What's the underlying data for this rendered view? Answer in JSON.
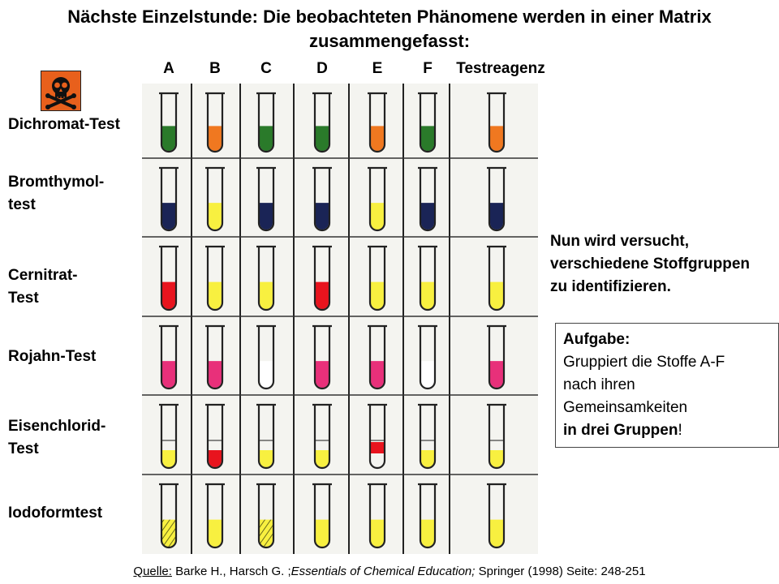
{
  "title": {
    "line1": "Nächste Einzelstunde: Die beobachteten Phänomene werden in einer Matrix",
    "line2": "zusammengefasst:"
  },
  "hazard_icon": "skull-crossbones-icon",
  "columns": [
    "A",
    "B",
    "C",
    "D",
    "E",
    "F",
    "Testreagenz"
  ],
  "rows": [
    {
      "label_lines": [
        "Dichromat-Test"
      ],
      "tubes": [
        {
          "color": "#2a7a2a"
        },
        {
          "color": "#f07820"
        },
        {
          "color": "#2a7a2a"
        },
        {
          "color": "#2a7a2a"
        },
        {
          "color": "#f07820"
        },
        {
          "color": "#2a7a2a"
        },
        {
          "color": "#f07820"
        }
      ]
    },
    {
      "label_lines": [
        "Bromthymol-",
        "test"
      ],
      "tubes": [
        {
          "color": "#1a2456"
        },
        {
          "color": "#f8f040"
        },
        {
          "color": "#1a2456"
        },
        {
          "color": "#1a2456"
        },
        {
          "color": "#f8f040"
        },
        {
          "color": "#1a2456"
        },
        {
          "color": "#1a2456"
        }
      ]
    },
    {
      "label_lines": [
        "Cernitrat-",
        "Test"
      ],
      "tubes": [
        {
          "color": "#e8141e"
        },
        {
          "color": "#f8f040"
        },
        {
          "color": "#f8f040"
        },
        {
          "color": "#e8141e"
        },
        {
          "color": "#f8f040"
        },
        {
          "color": "#f8f040"
        },
        {
          "color": "#f8f040"
        }
      ]
    },
    {
      "label_lines": [
        "Rojahn-Test"
      ],
      "tubes": [
        {
          "color": "#e8307a"
        },
        {
          "color": "#e8307a"
        },
        {
          "color": "#ffffff"
        },
        {
          "color": "#e8307a"
        },
        {
          "color": "#e8307a"
        },
        {
          "color": "#ffffff"
        },
        {
          "color": "#e8307a"
        }
      ]
    },
    {
      "label_lines": [
        "Eisenchlorid-",
        "Test"
      ],
      "tubes": [
        {
          "color": "#f8f040",
          "layered": true
        },
        {
          "color": "#e8141e",
          "layered": true
        },
        {
          "color": "#f8f040",
          "layered": true
        },
        {
          "color": "#f8f040",
          "layered": true
        },
        {
          "color": "#e8141e",
          "layered": true,
          "inverted": true
        },
        {
          "color": "#f8f040",
          "layered": true
        },
        {
          "color": "#f8f040",
          "layered": true
        }
      ]
    },
    {
      "label_lines": [
        "Iodoformtest"
      ],
      "tubes": [
        {
          "color": "#f8f040",
          "hatched": true
        },
        {
          "color": "#f8f040"
        },
        {
          "color": "#f8f040",
          "hatched": true
        },
        {
          "color": "#f8f040"
        },
        {
          "color": "#f8f040"
        },
        {
          "color": "#f8f040"
        },
        {
          "color": "#f8f040"
        }
      ]
    }
  ],
  "note_lines": [
    "Nun wird versucht,",
    "verschiedene Stoffgruppen",
    "zu identifizieren."
  ],
  "task": {
    "heading": "Aufgabe:",
    "line1": "Gruppiert die Stoffe A-F",
    "line2": "nach ihren",
    "line3": "Gemeinsamkeiten",
    "line4_bold": "in drei Gruppen",
    "line4_end": "!"
  },
  "source": {
    "label": "Quelle:",
    "authors": " Barke H., Harsch G. ;",
    "work": "Essentials  of Chemical Education;",
    "rest": " Springer (1998)  Seite: 248-251"
  }
}
